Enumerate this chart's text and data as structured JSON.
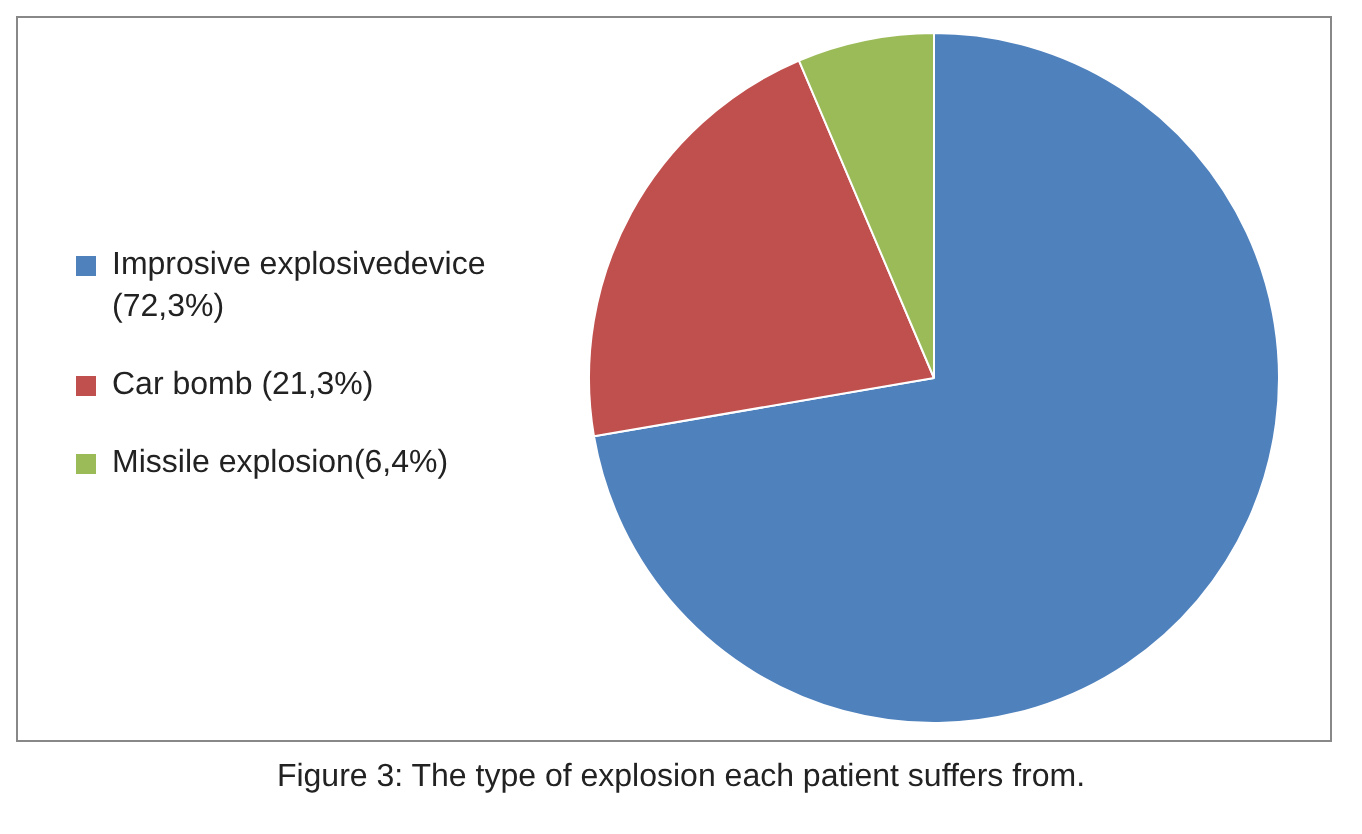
{
  "chart_data": {
    "type": "pie",
    "categories": [
      "Improsive explosivedevice (72,3%)",
      "Car bomb (21,3%)",
      "Missile explosion(6,4%)"
    ],
    "values": [
      72.3,
      21.3,
      6.4
    ],
    "colors": [
      "#4f81bd",
      "#c0504d",
      "#9bbb59"
    ],
    "legend": "left",
    "annotations": [
      "Figure 3: The type of explosion each patient suffers from."
    ]
  }
}
